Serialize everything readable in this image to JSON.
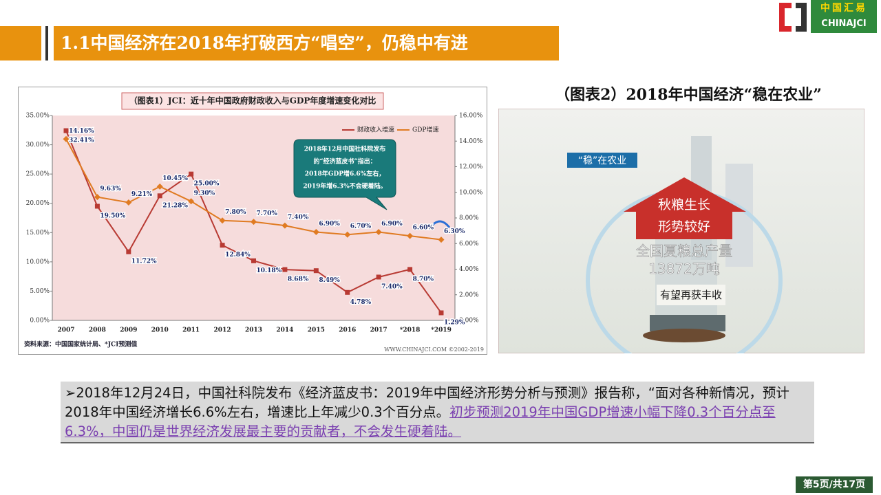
{
  "header": {
    "title": "1.1中国经济在2018年打破西方“唱空”，仍稳中有进"
  },
  "logo": {
    "cn": "中国汇易",
    "en": "CHINAJCI"
  },
  "chart_data": {
    "type": "line",
    "title": "（图表1）JCI：近十年中国政府财政收入与GDP年度增速变化对比",
    "categories": [
      "2007",
      "2008",
      "2009",
      "2010",
      "2011",
      "2012",
      "2013",
      "2014",
      "2015",
      "2016",
      "2017",
      "*2018",
      "*2019"
    ],
    "series": [
      {
        "name": "财政收入增速",
        "color": "#b83a33",
        "values": [
          32.41,
          19.5,
          11.72,
          21.28,
          25.0,
          12.84,
          10.18,
          8.68,
          8.49,
          4.78,
          7.4,
          8.7,
          1.29
        ],
        "value_labels": [
          "32.41%",
          "19.50%",
          "11.72%",
          "21.28%",
          "25.00%",
          "12.84%",
          "10.18%",
          "8.68%",
          "8.49%",
          "4.78%",
          "7.40%",
          "8.70%",
          "1.29%"
        ]
      },
      {
        "name": "GDP增速",
        "color": "#e07b22",
        "axis": "y2",
        "values": [
          14.16,
          9.63,
          9.21,
          10.45,
          9.3,
          7.8,
          7.7,
          7.4,
          6.9,
          6.7,
          6.9,
          6.6,
          6.3
        ],
        "value_labels": [
          "14.16%",
          "9.63%",
          "9.21%",
          "10.45%",
          "9.30%",
          "7.80%",
          "7.70%",
          "7.40%",
          "6.90%",
          "6.70%",
          "6.90%",
          "6.60%",
          "6.30%"
        ]
      }
    ],
    "ylim": [
      0,
      35
    ],
    "yticks": [
      {
        "value": 0,
        "label": "0.00%"
      },
      {
        "value": 5,
        "label": "5.00%"
      },
      {
        "value": 10,
        "label": "10.00%"
      },
      {
        "value": 15,
        "label": "15.00%"
      },
      {
        "value": 20,
        "label": "20.00%"
      },
      {
        "value": 25,
        "label": "25.00%"
      },
      {
        "value": 30,
        "label": "30.00%"
      },
      {
        "value": 35,
        "label": "35.00%"
      }
    ],
    "y2lim": [
      0,
      16
    ],
    "y2ticks": [
      {
        "value": 0,
        "label": "0.00%"
      },
      {
        "value": 2,
        "label": "2.00%"
      },
      {
        "value": 4,
        "label": "4.00%"
      },
      {
        "value": 6,
        "label": "6.00%"
      },
      {
        "value": 8,
        "label": "8.00%"
      },
      {
        "value": 10,
        "label": "10.00%"
      },
      {
        "value": 12,
        "label": "12.00%"
      },
      {
        "value": 14,
        "label": "14.00%"
      },
      {
        "value": 16,
        "label": "16.00%"
      }
    ],
    "legend": "top-right",
    "annotation": [
      "2018年12月中国社科院发布",
      "的“经济蓝皮书”指出：",
      "2018年GDP增6.6%左右，",
      "2019年增6.3%不会硬着陆。"
    ],
    "source": "资料来源：中国国家统计局、*JCI预测值",
    "footer": "WWW.CHINAJCI.COM ©2002-2019"
  },
  "figure2": {
    "caption": "（图表2）2018年中国经济“稳在农业”",
    "tag": "“稳”在农业",
    "roof": [
      "秋粮生长",
      "形势较好"
    ],
    "stat": [
      "全国夏粮总产量",
      "13872万吨"
    ],
    "banner": "有望再获丰收"
  },
  "body": {
    "text": "➢2018年12月24日，中国社科院发布《经济蓝皮书：2019年中国经济形势分析与预测》报告称，“面对各种新情况，预计2018年中国经济增长6.6%左右，增速比上年减少0.3个百分点。",
    "link": "初步预测2019年中国GDP增速小幅下降0.3个百分点至6.3%，中国仍是世界经济发展最主要的贡献者，不会发生硬着陆。"
  },
  "page": "第5页/共17页"
}
